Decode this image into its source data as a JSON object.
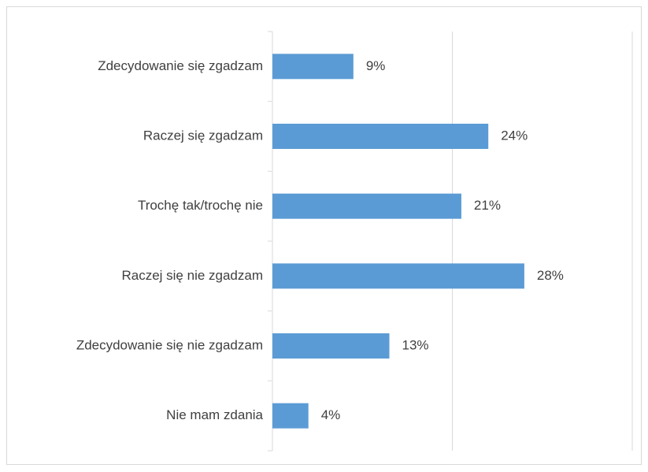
{
  "chart_data": {
    "type": "bar",
    "orientation": "horizontal",
    "categories": [
      "Zdecydowanie się zgadzam",
      "Raczej się zgadzam",
      "Trochę tak/trochę nie",
      "Raczej się nie zgadzam",
      "Zdecydowanie się nie zgadzam",
      "Nie mam zdania"
    ],
    "values": [
      9,
      24,
      21,
      28,
      13,
      4
    ],
    "value_labels": [
      "9%",
      "24%",
      "21%",
      "28%",
      "13%",
      "4%"
    ],
    "color": "#5b9bd5",
    "xlim": [
      0,
      40
    ],
    "xticks": [
      0,
      20,
      40
    ],
    "grid": true
  }
}
